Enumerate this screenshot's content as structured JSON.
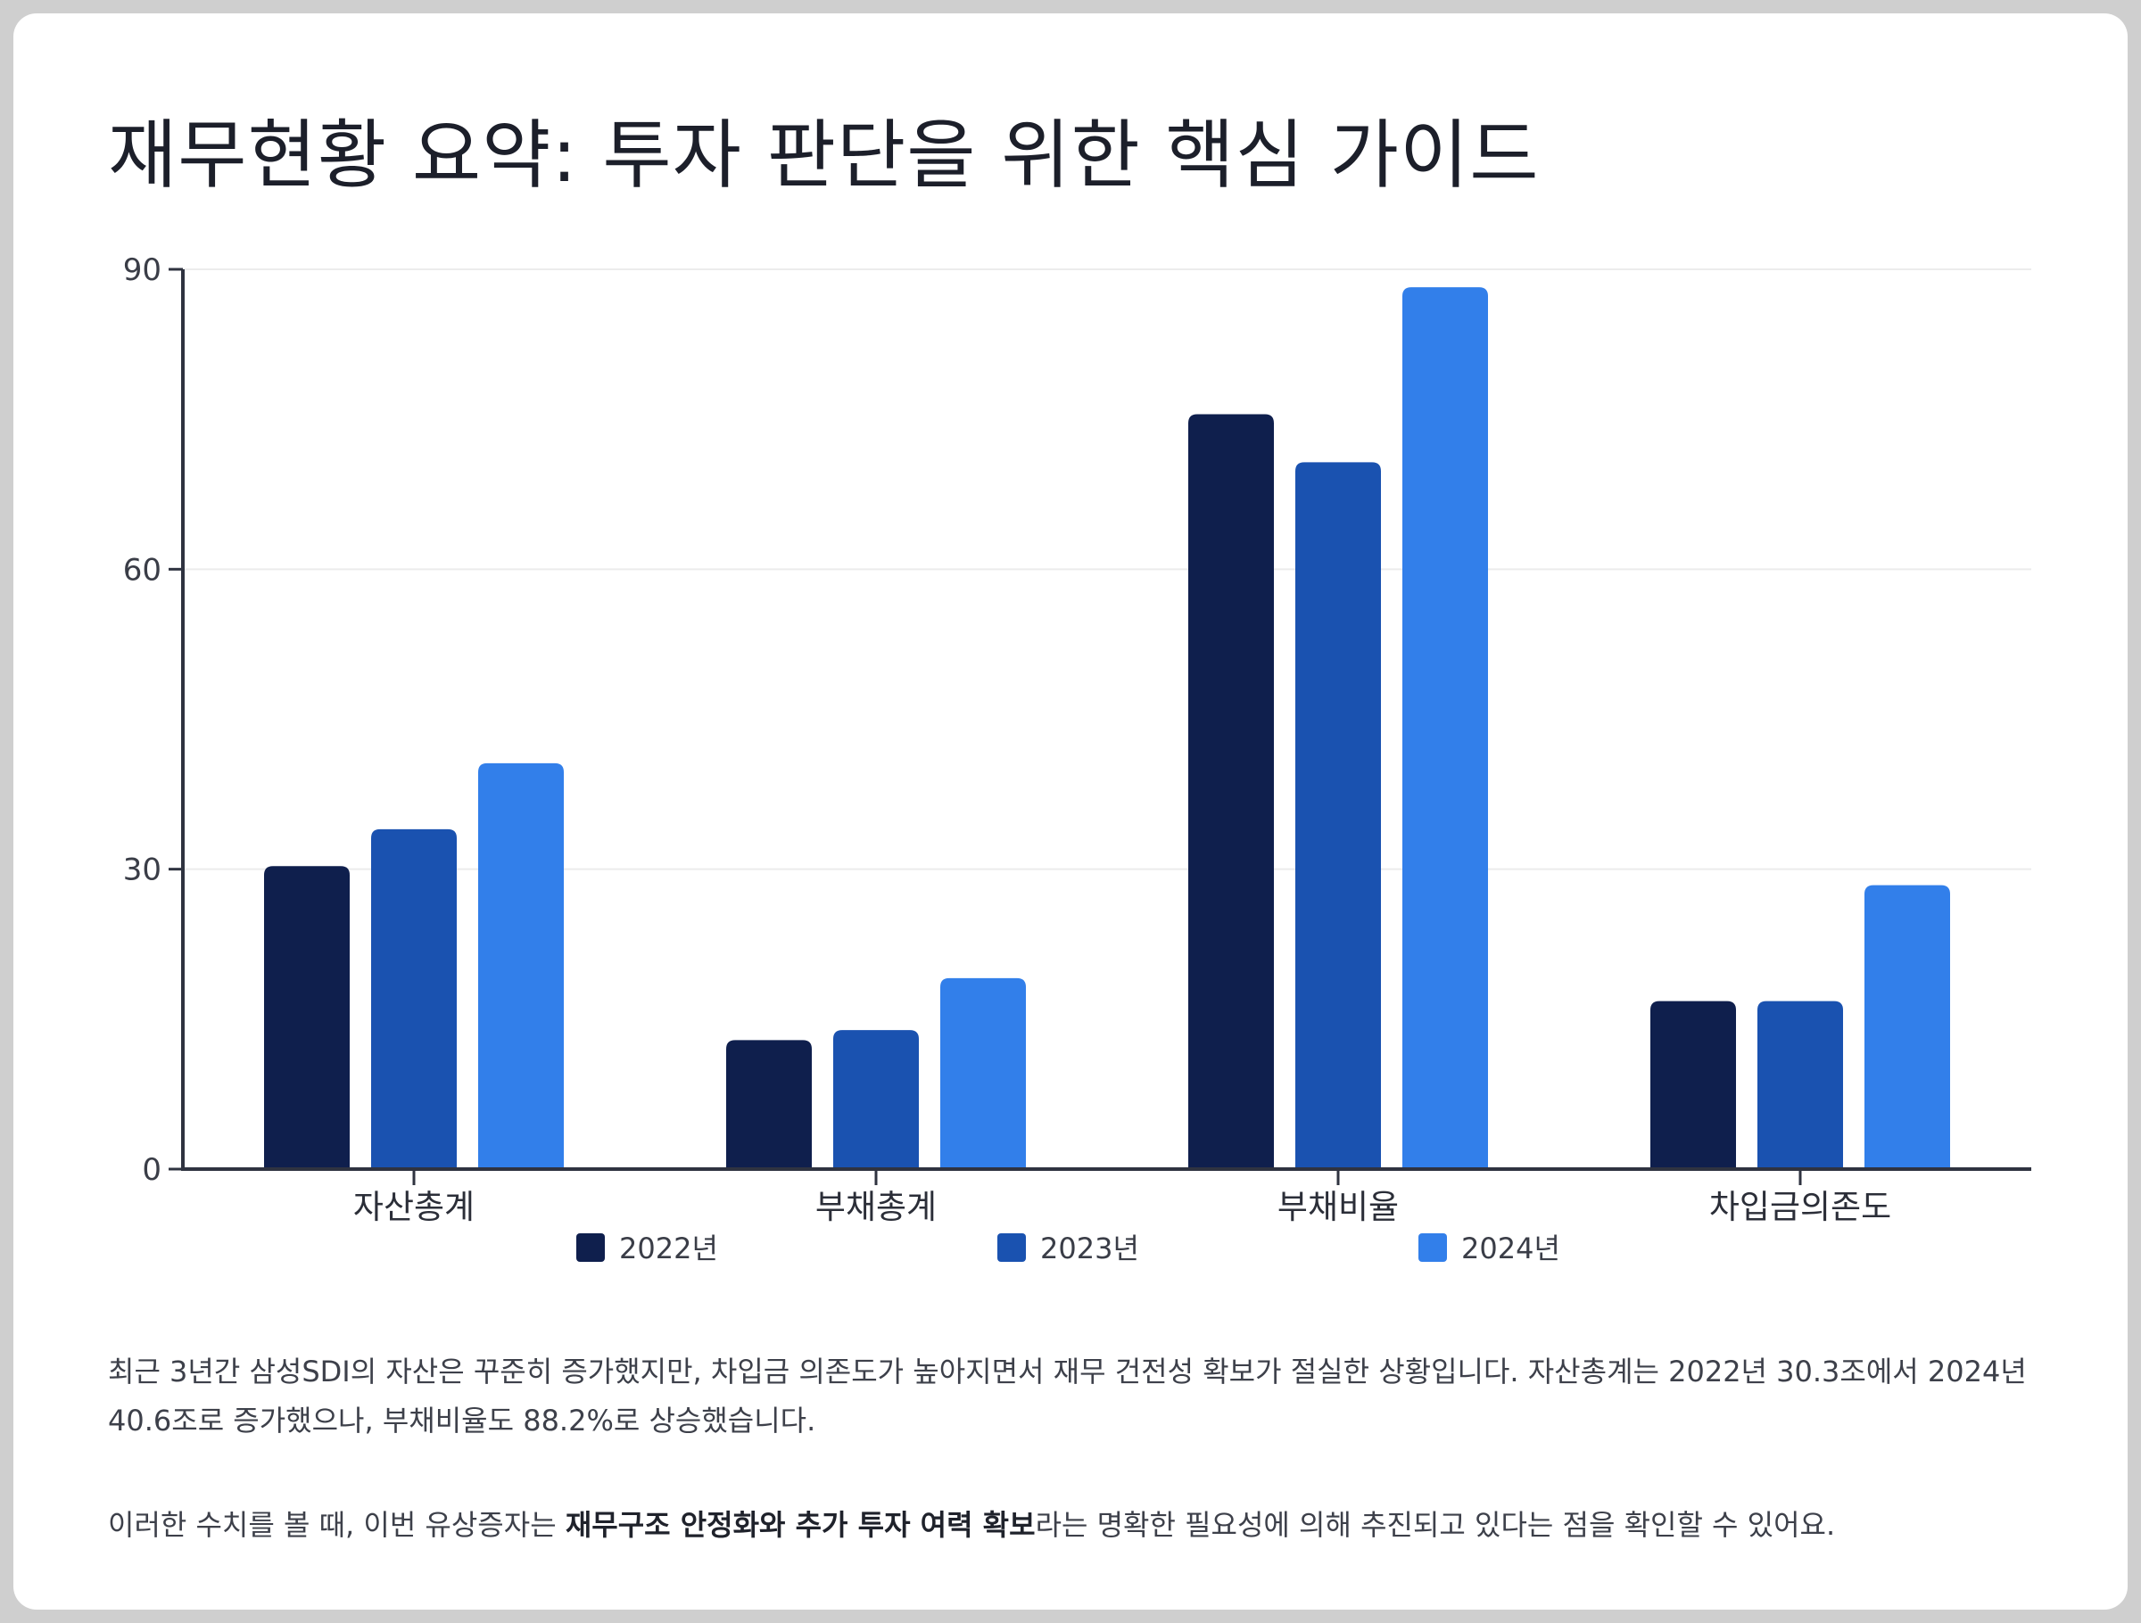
{
  "title": "재무현황 요약: 투자 판단을 위한 핵심 가이드",
  "chart_data": {
    "type": "bar",
    "categories": [
      "자산총계",
      "부채총계",
      "부채비율",
      "차입금의존도"
    ],
    "series": [
      {
        "name": "2022년",
        "color": "#0f1f4d",
        "values": [
          30.3,
          12.9,
          75.5,
          16.8
        ]
      },
      {
        "name": "2023년",
        "color": "#1a52b0",
        "values": [
          34.0,
          13.9,
          70.7,
          16.8
        ]
      },
      {
        "name": "2024년",
        "color": "#327fea",
        "values": [
          40.6,
          19.1,
          88.2,
          28.4
        ]
      }
    ],
    "ylim": [
      0,
      90
    ],
    "yticks": [
      0,
      30,
      60,
      90
    ],
    "grid": true,
    "legend": "bottom"
  },
  "description": {
    "p1": "최근 3년간 삼성SDI의 자산은 꾸준히 증가했지만, 차입금 의존도가 높아지면서 재무 건전성 확보가 절실한 상황입니다. 자산총계는 2022년 30.3조에서 2024년 40.6조로 증가했으나, 부채비율도 88.2%로 상승했습니다.",
    "p2_before": "이러한 수치를 볼 때, 이번 유상증자는 ",
    "p2_bold": "재무구조 안정화와 추가 투자 여력 확보",
    "p2_after": "라는 명확한 필요성에 의해 추진되고 있다는 점을 확인할 수 있어요."
  }
}
